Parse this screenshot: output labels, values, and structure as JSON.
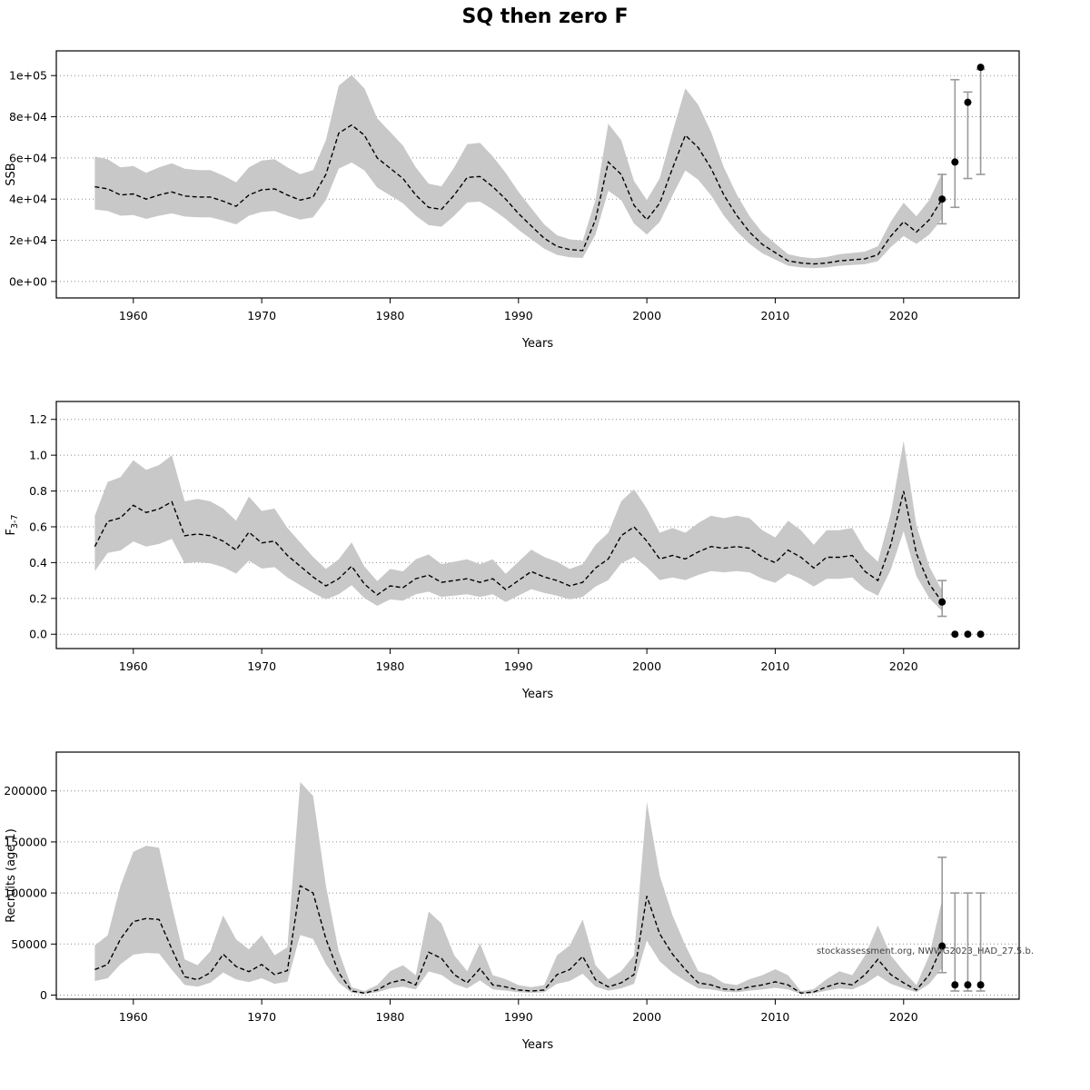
{
  "title": "SQ then zero F",
  "watermark": "stockassessment.org, NWWG2023_HAD_27.5.b.",
  "colors": {
    "band": "#c8c8c8",
    "line": "#000000",
    "grid": "#8c8c8c",
    "error_bar": "#9a9a9a",
    "point": "#000000",
    "border": "#000000"
  },
  "years": [
    1957,
    1958,
    1959,
    1960,
    1961,
    1962,
    1963,
    1964,
    1965,
    1966,
    1967,
    1968,
    1969,
    1970,
    1971,
    1972,
    1973,
    1974,
    1975,
    1976,
    1977,
    1978,
    1979,
    1980,
    1981,
    1982,
    1983,
    1984,
    1985,
    1986,
    1987,
    1988,
    1989,
    1990,
    1991,
    1992,
    1993,
    1994,
    1995,
    1996,
    1997,
    1998,
    1999,
    2000,
    2001,
    2002,
    2003,
    2004,
    2005,
    2006,
    2007,
    2008,
    2009,
    2010,
    2011,
    2012,
    2013,
    2014,
    2015,
    2016,
    2017,
    2018,
    2019,
    2020,
    2021,
    2022,
    2023
  ],
  "chart_data": [
    {
      "type": "line",
      "name": "ssb",
      "ylabel": "SSB",
      "ylabel_sub": "",
      "xlabel": "Years",
      "xlim": [
        1954,
        2029
      ],
      "ylim": [
        -8000,
        112000
      ],
      "xticks": [
        1960,
        1970,
        1980,
        1990,
        2000,
        2010,
        2020
      ],
      "yticks": [
        0,
        20000,
        40000,
        60000,
        80000,
        100000
      ],
      "ytick_labels": [
        "0e+00",
        "2e+04",
        "4e+04",
        "6e+04",
        "8e+04",
        "1e+05"
      ],
      "band_factors": [
        0.76,
        1.32
      ],
      "series": [
        {
          "name": "SSB estimate (dashed, with 95% CI band)",
          "values": [
            46000,
            45000,
            42000,
            42500,
            40000,
            42000,
            43500,
            41500,
            41000,
            41000,
            39000,
            36500,
            42000,
            44500,
            45000,
            42000,
            39500,
            41000,
            52000,
            72000,
            76000,
            71000,
            60000,
            55000,
            50000,
            42000,
            36000,
            35000,
            42000,
            50500,
            51000,
            46000,
            40000,
            33000,
            27000,
            21000,
            17000,
            15500,
            15000,
            30000,
            58000,
            52000,
            37000,
            30000,
            38000,
            55000,
            71000,
            65000,
            55000,
            42000,
            32000,
            24000,
            18000,
            14000,
            10000,
            9000,
            8500,
            9000,
            10000,
            10500,
            11000,
            13000,
            22000,
            29000,
            24000,
            30000,
            40000
          ]
        }
      ],
      "forecast": [
        {
          "x": 2023,
          "y": 40000,
          "lo": 28000,
          "hi": 52000
        },
        {
          "x": 2024,
          "y": 58000,
          "lo": 36000,
          "hi": 98000
        },
        {
          "x": 2025,
          "y": 87000,
          "lo": 50000,
          "hi": 92000
        },
        {
          "x": 2026,
          "y": 104000,
          "lo": 52000,
          "hi": 103000
        }
      ]
    },
    {
      "type": "line",
      "name": "fishing-mortality",
      "ylabel": "F",
      "ylabel_sub": "3-7",
      "xlabel": "Years",
      "xlim": [
        1954,
        2029
      ],
      "ylim": [
        -0.08,
        1.3
      ],
      "xticks": [
        1960,
        1970,
        1980,
        1990,
        2000,
        2010,
        2020
      ],
      "yticks": [
        0.0,
        0.2,
        0.4,
        0.6,
        0.8,
        1.0,
        1.2
      ],
      "ytick_labels": [
        "0.0",
        "0.2",
        "0.4",
        "0.6",
        "0.8",
        "1.0",
        "1.2"
      ],
      "band_factors": [
        0.72,
        1.35
      ],
      "series": [
        {
          "name": "F(3-7) estimate (dashed, with 95% CI band)",
          "values": [
            0.49,
            0.63,
            0.65,
            0.72,
            0.68,
            0.7,
            0.74,
            0.55,
            0.56,
            0.55,
            0.52,
            0.47,
            0.57,
            0.51,
            0.52,
            0.44,
            0.38,
            0.32,
            0.27,
            0.31,
            0.38,
            0.28,
            0.22,
            0.27,
            0.26,
            0.31,
            0.33,
            0.29,
            0.3,
            0.31,
            0.29,
            0.31,
            0.25,
            0.3,
            0.35,
            0.32,
            0.3,
            0.27,
            0.29,
            0.37,
            0.42,
            0.55,
            0.6,
            0.52,
            0.42,
            0.44,
            0.42,
            0.46,
            0.49,
            0.48,
            0.49,
            0.48,
            0.43,
            0.4,
            0.47,
            0.43,
            0.37,
            0.43,
            0.43,
            0.44,
            0.35,
            0.3,
            0.5,
            0.8,
            0.45,
            0.28,
            0.18
          ]
        }
      ],
      "forecast": [
        {
          "x": 2023,
          "y": 0.18,
          "lo": 0.1,
          "hi": 0.3
        },
        {
          "x": 2024,
          "y": 0.0
        },
        {
          "x": 2025,
          "y": 0.0
        },
        {
          "x": 2026,
          "y": 0.0
        }
      ]
    },
    {
      "type": "line",
      "name": "recruits",
      "ylabel": "Recruits (age 1)",
      "ylabel_sub": "",
      "xlabel": "Years",
      "xlim": [
        1954,
        2029
      ],
      "ylim": [
        -4000,
        238000
      ],
      "xticks": [
        1960,
        1970,
        1980,
        1990,
        2000,
        2010,
        2020
      ],
      "yticks": [
        0,
        50000,
        100000,
        150000,
        200000
      ],
      "ytick_labels": [
        "0",
        "50000",
        "100000",
        "150000",
        "200000"
      ],
      "band_factors": [
        0.55,
        1.95
      ],
      "series": [
        {
          "name": "Recruitment estimate (dashed, with 95% CI band)",
          "values": [
            25000,
            30000,
            55000,
            72000,
            75000,
            74000,
            45000,
            18000,
            15000,
            22000,
            40000,
            28000,
            23000,
            30000,
            20000,
            24000,
            107000,
            100000,
            55000,
            22000,
            4000,
            2000,
            5000,
            12000,
            15000,
            10000,
            42000,
            36000,
            20000,
            12000,
            26000,
            10000,
            8000,
            5000,
            4000,
            5000,
            20000,
            25000,
            38000,
            15000,
            8000,
            12000,
            20000,
            97000,
            60000,
            40000,
            25000,
            12000,
            10000,
            6000,
            5000,
            8000,
            10000,
            13000,
            10000,
            2000,
            3000,
            8000,
            12000,
            10000,
            20000,
            35000,
            20000,
            12000,
            5000,
            20000,
            48000
          ]
        }
      ],
      "forecast": [
        {
          "x": 2023,
          "y": 48000,
          "lo": 22000,
          "hi": 135000
        },
        {
          "x": 2024,
          "y": 10000,
          "lo": 4000,
          "hi": 100000
        },
        {
          "x": 2025,
          "y": 10000,
          "lo": 4000,
          "hi": 100000
        },
        {
          "x": 2026,
          "y": 10000,
          "lo": 4000,
          "hi": 100000
        }
      ]
    }
  ]
}
